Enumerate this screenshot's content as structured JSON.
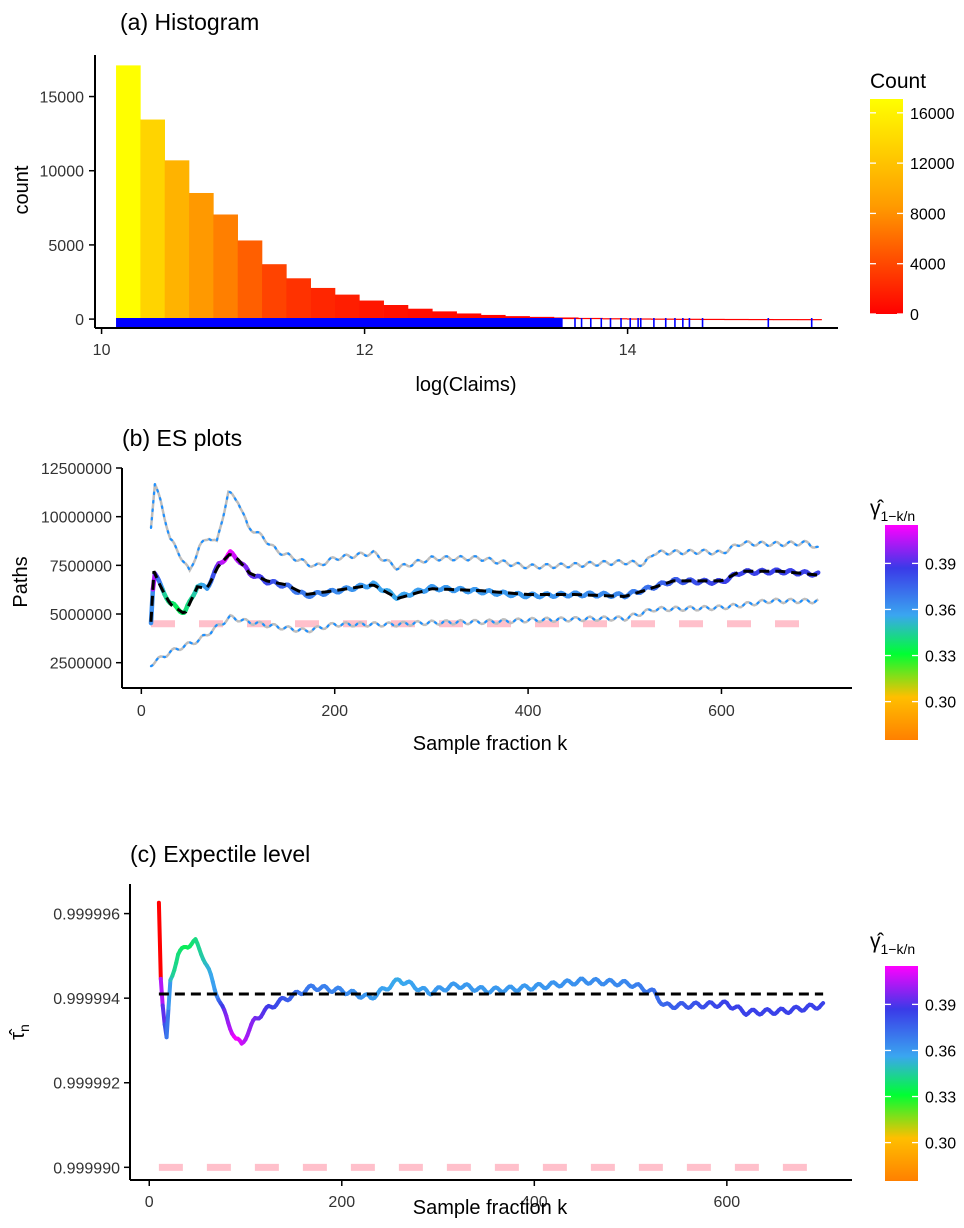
{
  "chart_data": [
    {
      "type": "bar",
      "title": "(a) Histogram",
      "xlabel": "log(Claims)",
      "ylabel": "count",
      "xlim": [
        9.95,
        15.6
      ],
      "ylim": [
        -600,
        17800
      ],
      "xticks": [
        "10",
        "12",
        "14"
      ],
      "yticks": [
        "0",
        "5000",
        "10000",
        "15000"
      ],
      "bin_start": 10.11,
      "bin_width": 0.185,
      "values": [
        17100,
        13450,
        10700,
        8500,
        7050,
        5300,
        3700,
        2750,
        2100,
        1650,
        1250,
        950,
        700,
        520,
        380,
        280,
        200,
        150,
        110,
        80,
        60,
        45,
        35,
        25,
        18,
        12,
        8,
        5,
        3
      ],
      "rug_dense_range": [
        10.11,
        13.4
      ],
      "rug_sparse": [
        13.5,
        13.6,
        13.65,
        13.72,
        13.8,
        13.87,
        13.95,
        14.02,
        14.08,
        14.1,
        14.2,
        14.29,
        14.36,
        14.42,
        14.47,
        14.57,
        15.07,
        15.4
      ],
      "colorbar": {
        "title": "Count",
        "ticks": [
          "0",
          "4000",
          "8000",
          "12000",
          "16000"
        ],
        "range": [
          0,
          17100
        ],
        "colors": [
          "#ff0000",
          "#ffff00"
        ]
      }
    },
    {
      "type": "line",
      "title": "(b) ES plots",
      "xlabel": "Sample  fraction  k",
      "ylabel": "Paths",
      "xlim": [
        -20,
        735
      ],
      "ylim": [
        1200000,
        12500000
      ],
      "xticks": [
        "0",
        "200",
        "400",
        "600"
      ],
      "yticks": [
        "2500000",
        "5000000",
        "7500000",
        "10000000",
        "12500000"
      ],
      "x_range": [
        10,
        700
      ],
      "series": [
        {
          "role": "upper",
          "points": [
            [
              10,
              9500000
            ],
            [
              14,
              11700000
            ],
            [
              20,
              10700000
            ],
            [
              30,
              8800000
            ],
            [
              42,
              7800000
            ],
            [
              50,
              7100000
            ],
            [
              60,
              8400000
            ],
            [
              70,
              8900000
            ],
            [
              78,
              8600000
            ],
            [
              90,
              11200000
            ],
            [
              100,
              10800000
            ],
            [
              110,
              9500000
            ],
            [
              125,
              9000000
            ],
            [
              140,
              8300000
            ],
            [
              160,
              7900000
            ],
            [
              180,
              7500000
            ],
            [
              200,
              7900000
            ],
            [
              240,
              8100000
            ],
            [
              265,
              7300000
            ],
            [
              300,
              7800000
            ],
            [
              350,
              7900000
            ],
            [
              400,
              7500000
            ],
            [
              450,
              7500000
            ],
            [
              500,
              7600000
            ],
            [
              520,
              7500000
            ],
            [
              530,
              8100000
            ],
            [
              580,
              8250000
            ],
            [
              600,
              8200000
            ],
            [
              620,
              8700000
            ],
            [
              660,
              8600000
            ],
            [
              690,
              8600000
            ],
            [
              700,
              8300000
            ]
          ]
        },
        {
          "role": "estimate",
          "points": [
            [
              10,
              4600000
            ],
            [
              13,
              7200000
            ],
            [
              20,
              6400000
            ],
            [
              30,
              5500000
            ],
            [
              45,
              5000000
            ],
            [
              58,
              6400000
            ],
            [
              68,
              6300000
            ],
            [
              80,
              7500000
            ],
            [
              92,
              8100000
            ],
            [
              100,
              7800000
            ],
            [
              112,
              7100000
            ],
            [
              130,
              6700000
            ],
            [
              150,
              6500000
            ],
            [
              170,
              6000000
            ],
            [
              200,
              6200000
            ],
            [
              240,
              6500000
            ],
            [
              265,
              5800000
            ],
            [
              300,
              6300000
            ],
            [
              350,
              6200000
            ],
            [
              400,
              6000000
            ],
            [
              450,
              6000000
            ],
            [
              500,
              5900000
            ],
            [
              520,
              6200000
            ],
            [
              550,
              6700000
            ],
            [
              600,
              6700000
            ],
            [
              620,
              7200000
            ],
            [
              660,
              7200000
            ],
            [
              700,
              7000000
            ]
          ]
        },
        {
          "role": "lower",
          "points": [
            [
              10,
              2400000
            ],
            [
              30,
              3000000
            ],
            [
              60,
              3600000
            ],
            [
              92,
              4800000
            ],
            [
              110,
              4600000
            ],
            [
              170,
              4200000
            ],
            [
              200,
              4500000
            ],
            [
              260,
              4400000
            ],
            [
              300,
              4500000
            ],
            [
              400,
              4750000
            ],
            [
              500,
              4700000
            ],
            [
              530,
              5200000
            ],
            [
              600,
              5400000
            ],
            [
              650,
              5700000
            ],
            [
              700,
              5600000
            ]
          ]
        },
        {
          "role": "baseline",
          "points": [
            [
              10,
              4500000
            ],
            [
              700,
              4500000
            ]
          ]
        }
      ],
      "gamma_path": [
        [
          10,
          0.27
        ],
        [
          13,
          0.41
        ],
        [
          18,
          0.38
        ],
        [
          25,
          0.345
        ],
        [
          40,
          0.335
        ],
        [
          55,
          0.345
        ],
        [
          70,
          0.36
        ],
        [
          80,
          0.395
        ],
        [
          92,
          0.415
        ],
        [
          105,
          0.4
        ],
        [
          130,
          0.385
        ],
        [
          160,
          0.37
        ],
        [
          200,
          0.365
        ],
        [
          260,
          0.355
        ],
        [
          300,
          0.36
        ],
        [
          400,
          0.36
        ],
        [
          500,
          0.365
        ],
        [
          540,
          0.375
        ],
        [
          600,
          0.385
        ],
        [
          700,
          0.385
        ]
      ],
      "colorbar": {
        "title_main": "γ̂",
        "title_sub": "1−k/n",
        "ticks": [
          "0.30",
          "0.33",
          "0.36",
          "0.39"
        ],
        "tick_values": [
          0.3,
          0.33,
          0.36,
          0.39
        ],
        "range": [
          0.275,
          0.415
        ]
      }
    },
    {
      "type": "line",
      "title": "(c) Expectile level",
      "xlabel": "Sample  fraction  k",
      "ylabel": "τ̂n",
      "ylabel_main": "τ̂",
      "ylabel_sub": "n",
      "xlim": [
        -20,
        730
      ],
      "ylim": [
        0.9999897,
        0.9999967
      ],
      "xticks": [
        "0",
        "200",
        "400",
        "600"
      ],
      "yticks": [
        "0.999990",
        "0.999992",
        "0.999994",
        "0.999996"
      ],
      "series": [
        {
          "role": "estimate",
          "points": [
            [
              10,
              0.9999963
            ],
            [
              12,
              0.9999945
            ],
            [
              15,
              0.9999935
            ],
            [
              18,
              0.999993
            ],
            [
              22,
              0.9999944
            ],
            [
              30,
              0.999995
            ],
            [
              38,
              0.9999952
            ],
            [
              48,
              0.9999953
            ],
            [
              55,
              0.999995
            ],
            [
              62,
              0.9999946
            ],
            [
              68,
              0.9999942
            ],
            [
              75,
              0.9999938
            ],
            [
              82,
              0.9999934
            ],
            [
              90,
              0.999993
            ],
            [
              96,
              0.9999929
            ],
            [
              110,
              0.9999935
            ],
            [
              125,
              0.9999938
            ],
            [
              140,
              0.999994
            ],
            [
              170,
              0.9999943
            ],
            [
              200,
              0.9999942
            ],
            [
              230,
              0.999994
            ],
            [
              260,
              0.9999944
            ],
            [
              290,
              0.9999941
            ],
            [
              320,
              0.9999943
            ],
            [
              350,
              0.9999942
            ],
            [
              400,
              0.9999943
            ],
            [
              450,
              0.9999944
            ],
            [
              500,
              0.9999943
            ],
            [
              525,
              0.9999941
            ],
            [
              535,
              0.9999938
            ],
            [
              600,
              0.9999939
            ],
            [
              620,
              0.9999937
            ],
            [
              660,
              0.9999937
            ],
            [
              700,
              0.9999938
            ]
          ]
        },
        {
          "role": "reference",
          "points": [
            [
              10,
              0.9999941
            ],
            [
              700,
              0.9999941
            ]
          ]
        },
        {
          "role": "baseline",
          "points": [
            [
              10,
              0.99999
            ],
            [
              700,
              0.99999
            ]
          ]
        }
      ],
      "colorbar": {
        "title_main": "γ̂",
        "title_sub": "1−k/n",
        "ticks": [
          "0.30",
          "0.33",
          "0.36",
          "0.39"
        ],
        "tick_values": [
          0.3,
          0.33,
          0.36,
          0.39
        ],
        "range": [
          0.275,
          0.415
        ]
      }
    }
  ],
  "colors": {
    "rug": "#0000ff",
    "dashed": "#000000",
    "ci_line": "#bebebe",
    "ci_dots": "#1e90ff",
    "baseline": "#ffc0cb"
  }
}
